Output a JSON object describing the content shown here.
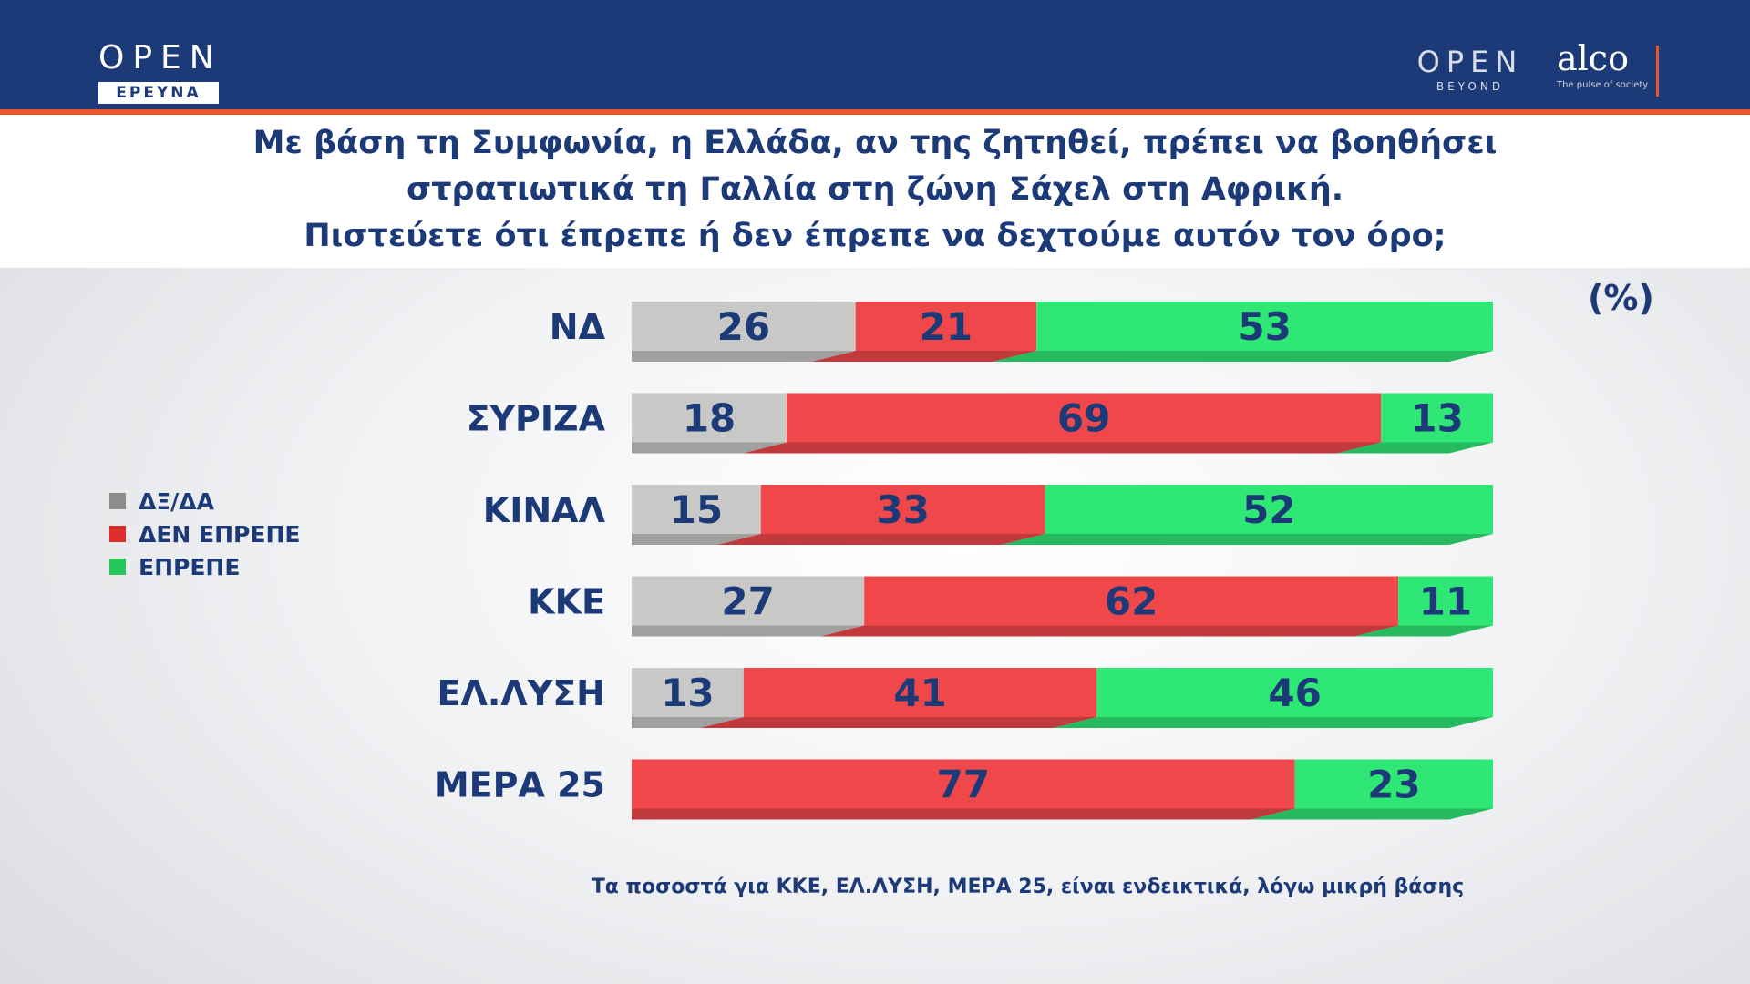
{
  "branding": {
    "left_logo": "OPEN",
    "left_logo_sub": "ΕΡΕΥΝΑ",
    "right_logo": "OPEN",
    "right_logo_sub": "BEYOND",
    "partner_logo": "alco",
    "partner_tagline": "The pulse of society"
  },
  "title_lines": [
    "Με βάση τη Συμφωνία, η Ελλάδα, αν της ζητηθεί, πρέπει να βοηθήσει",
    "στρατιωτικά τη Γαλλία στη ζώνη Σάχελ στη Αφρική.",
    "Πιστεύετε ότι έπρεπε ή δεν έπρεπε να δεχτούμε αυτόν τον όρο;"
  ],
  "unit_label": "(%)",
  "footnote": "Τα ποσοστά για ΚΚΕ, ΕΛ.ΛΥΣΗ, ΜΕΡΑ 25, είναι ενδεικτικά, λόγω μικρή βάσης",
  "chart_data": {
    "type": "bar",
    "orientation": "horizontal",
    "stacked": true,
    "xlim": [
      0,
      100
    ],
    "grid": false,
    "legend_position": "left",
    "categories": [
      "ΝΔ",
      "ΣΥΡΙΖΑ",
      "ΚΙΝΑΛ",
      "ΚΚΕ",
      "ΕΛ.ΛΥΣΗ",
      "ΜΕΡΑ 25"
    ],
    "series": [
      {
        "name": "ΔΞ/ΔΑ",
        "color": "#c8c8c6",
        "legend_color": "#8c8c8c",
        "values": [
          26,
          18,
          15,
          27,
          13,
          0
        ]
      },
      {
        "name": "ΔΕΝ ΕΠΡΕΠΕ",
        "color": "#f0484a",
        "legend_color": "#e02e2e",
        "values": [
          21,
          69,
          33,
          62,
          41,
          77
        ]
      },
      {
        "name": "ΕΠΡΕΠΕ",
        "color": "#2fe774",
        "legend_color": "#28c65a",
        "values": [
          53,
          13,
          52,
          11,
          46,
          23
        ]
      }
    ]
  }
}
